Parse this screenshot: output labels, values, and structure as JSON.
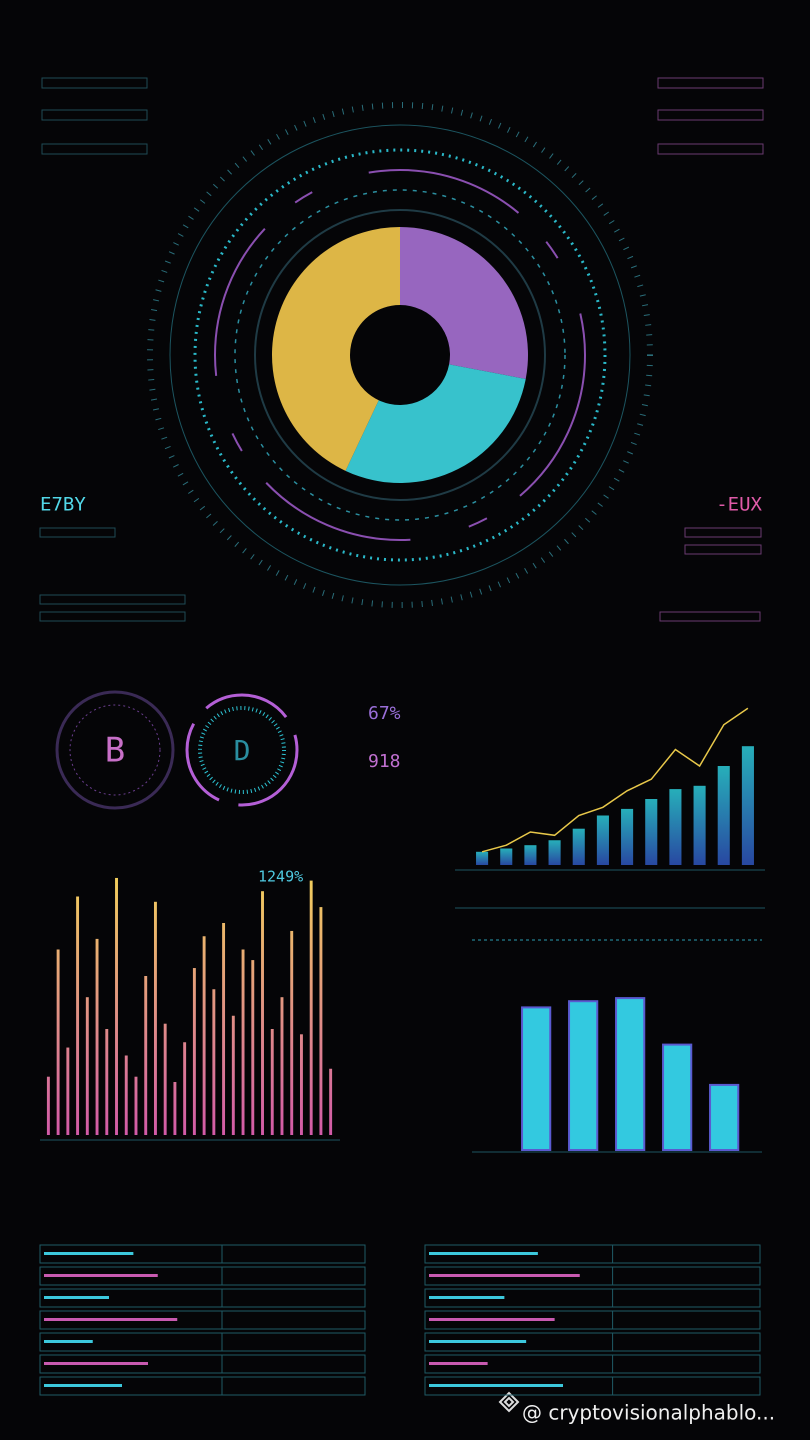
{
  "donut": {
    "segments": [
      {
        "color": "#a46fcf",
        "value": 28
      },
      {
        "color": "#3cd3dd",
        "value": 29
      },
      {
        "color": "#f0c54c",
        "value": 43
      }
    ]
  },
  "left_label": "E7BY",
  "right_label": "-EUX",
  "coins": [
    "B",
    "D"
  ],
  "stats": [
    "67%",
    "918"
  ],
  "spike_chart": {
    "label": "1249%",
    "ylim": [
      0,
      100
    ],
    "values": [
      22,
      70,
      33,
      90,
      52,
      74,
      40,
      97,
      30,
      22,
      60,
      88,
      42,
      20,
      35,
      63,
      75,
      55,
      80,
      45,
      70,
      66,
      92,
      40,
      52,
      77,
      38,
      96,
      86,
      25
    ]
  },
  "line_chart": {
    "ylim": [
      0,
      100
    ],
    "line": [
      8,
      12,
      20,
      18,
      30,
      35,
      45,
      52,
      70,
      60,
      85,
      95
    ],
    "bars": [
      8,
      10,
      12,
      15,
      22,
      30,
      34,
      40,
      46,
      48,
      60,
      72
    ]
  },
  "bar_chart": {
    "ylim": [
      0,
      100
    ],
    "values": [
      92,
      96,
      98,
      68,
      42
    ],
    "color": "#33c9e0"
  },
  "tables": [
    {
      "bars": [
        55,
        70,
        40,
        82,
        30,
        64,
        48
      ]
    },
    {
      "bars": [
        65,
        90,
        45,
        75,
        58,
        35,
        80
      ]
    }
  ],
  "watermark": "@ cryptovisionalphablo..."
}
